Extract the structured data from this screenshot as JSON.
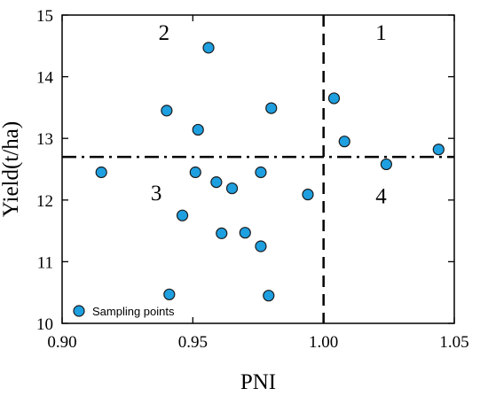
{
  "chart_data": {
    "type": "scatter",
    "xlabel": "PNI",
    "ylabel": "Yield(t/ha)",
    "xlim": [
      0.9,
      1.05
    ],
    "ylim": [
      10,
      15
    ],
    "xticks": [
      "0.90",
      "0.95",
      "1.00",
      "1.05"
    ],
    "yticks": [
      "10",
      "11",
      "12",
      "13",
      "14",
      "15"
    ],
    "grid": false,
    "legend_position": "bottom-left",
    "point_color": "#1e9fe0",
    "point_edge_color": "#1a1a1a",
    "series": [
      {
        "name": "Sampling points",
        "points": [
          {
            "x": 0.915,
            "y": 12.45
          },
          {
            "x": 0.94,
            "y": 13.45
          },
          {
            "x": 0.941,
            "y": 10.47
          },
          {
            "x": 0.946,
            "y": 11.75
          },
          {
            "x": 0.951,
            "y": 12.45
          },
          {
            "x": 0.952,
            "y": 13.14
          },
          {
            "x": 0.956,
            "y": 14.47
          },
          {
            "x": 0.959,
            "y": 12.29
          },
          {
            "x": 0.961,
            "y": 11.46
          },
          {
            "x": 0.965,
            "y": 12.19
          },
          {
            "x": 0.97,
            "y": 11.47
          },
          {
            "x": 0.976,
            "y": 12.45
          },
          {
            "x": 0.976,
            "y": 11.25
          },
          {
            "x": 0.979,
            "y": 10.45
          },
          {
            "x": 0.98,
            "y": 13.49
          },
          {
            "x": 0.994,
            "y": 12.09
          },
          {
            "x": 1.004,
            "y": 13.65
          },
          {
            "x": 1.008,
            "y": 12.95
          },
          {
            "x": 1.024,
            "y": 12.58
          },
          {
            "x": 1.044,
            "y": 12.82
          }
        ]
      }
    ],
    "reference_lines": [
      {
        "orientation": "vertical",
        "value": 1.0,
        "style": "dashed"
      },
      {
        "orientation": "horizontal",
        "value": 12.7,
        "style": "dash-dot"
      }
    ],
    "annotations": [
      {
        "text": "1",
        "x": 1.022,
        "y": 14.6
      },
      {
        "text": "2",
        "x": 0.939,
        "y": 14.6
      },
      {
        "text": "3",
        "x": 0.936,
        "y": 12.0
      },
      {
        "text": "4",
        "x": 1.022,
        "y": 11.95
      }
    ]
  }
}
